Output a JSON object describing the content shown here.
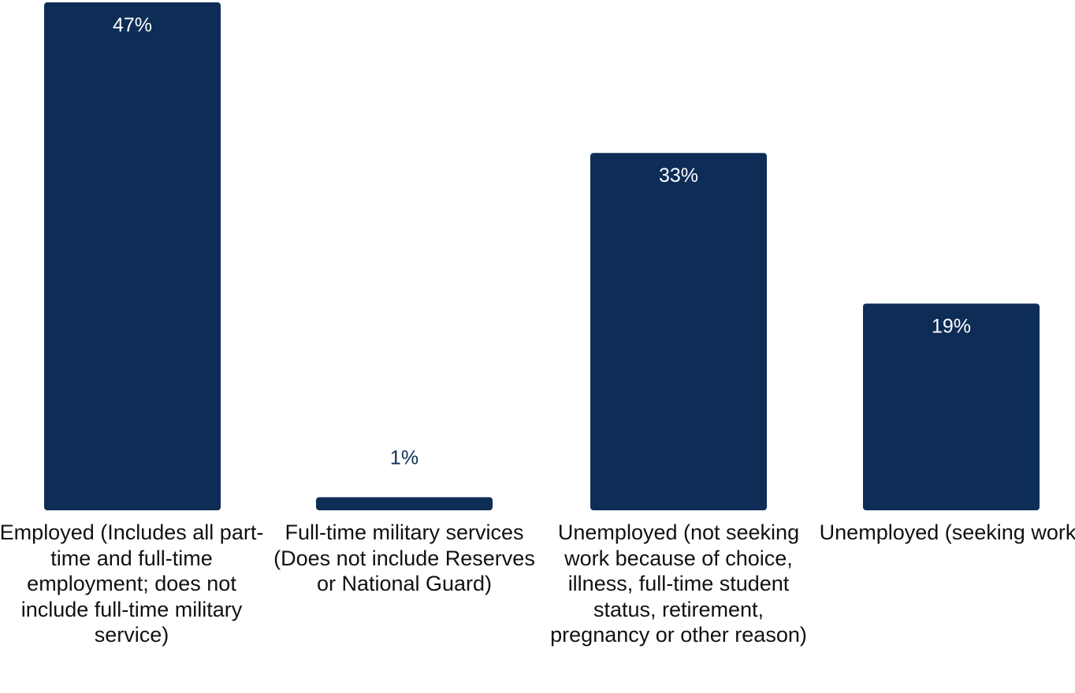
{
  "chart_data": {
    "type": "bar",
    "categories": [
      "Employed (Includes all part-time and full-time employment; does not include full-time military service)",
      "Full-time military services (Does not include Reserves or National Guard)",
      "Unemployed (not seeking work because of choice, illness, full-time student status, retirement, pregnancy or other reason)",
      "Unemployed (seeking work)"
    ],
    "values": [
      47,
      1,
      33,
      19
    ],
    "data_labels": [
      "47%",
      "1%",
      "33%",
      "19%"
    ],
    "unit": "%",
    "title": "",
    "xlabel": "",
    "ylabel": "",
    "ylim": [
      0,
      47
    ],
    "grid": false,
    "legend": "none",
    "colors": {
      "bar": "#0d2d57",
      "label_inside": "#ffffff",
      "label_outside": "#0d2d57",
      "category_text": "#111111"
    }
  }
}
